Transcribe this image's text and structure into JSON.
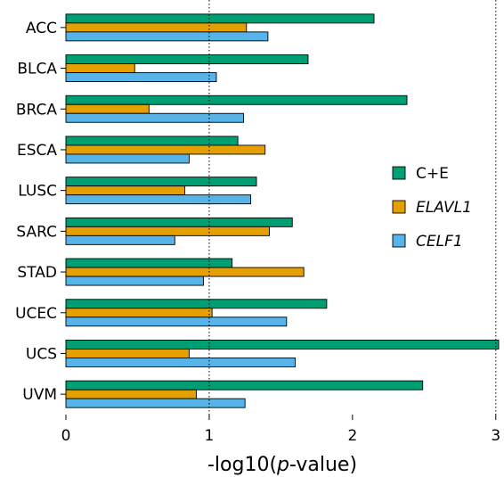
{
  "chart_data": {
    "type": "bar",
    "orientation": "horizontal",
    "categories": [
      "ACC",
      "BLCA",
      "BRCA",
      "ESCA",
      "LUSC",
      "SARC",
      "STAD",
      "UCEC",
      "UCS",
      "UVM"
    ],
    "series": [
      {
        "name": "C+E",
        "color": "#009E73",
        "italic": false,
        "values": [
          2.15,
          1.69,
          2.38,
          1.2,
          1.33,
          1.58,
          1.16,
          1.82,
          3.02,
          2.49
        ]
      },
      {
        "name": "ELAVL1",
        "color": "#E69F00",
        "italic": true,
        "values": [
          1.26,
          0.48,
          0.58,
          1.39,
          0.83,
          1.42,
          1.66,
          1.02,
          0.86,
          0.91
        ]
      },
      {
        "name": "CELF1",
        "color": "#56B4E9",
        "italic": true,
        "values": [
          1.41,
          1.05,
          1.24,
          0.86,
          1.29,
          0.76,
          0.96,
          1.54,
          1.6,
          1.25
        ]
      }
    ],
    "x_ticks": [
      0,
      1,
      2,
      3
    ],
    "xlim": [
      0,
      3.02
    ],
    "xlabel": {
      "prefix": "-log10(",
      "italic": "p",
      "suffix": "-value)"
    },
    "reference_lines": [
      1,
      3
    ],
    "legend_position": "right"
  }
}
